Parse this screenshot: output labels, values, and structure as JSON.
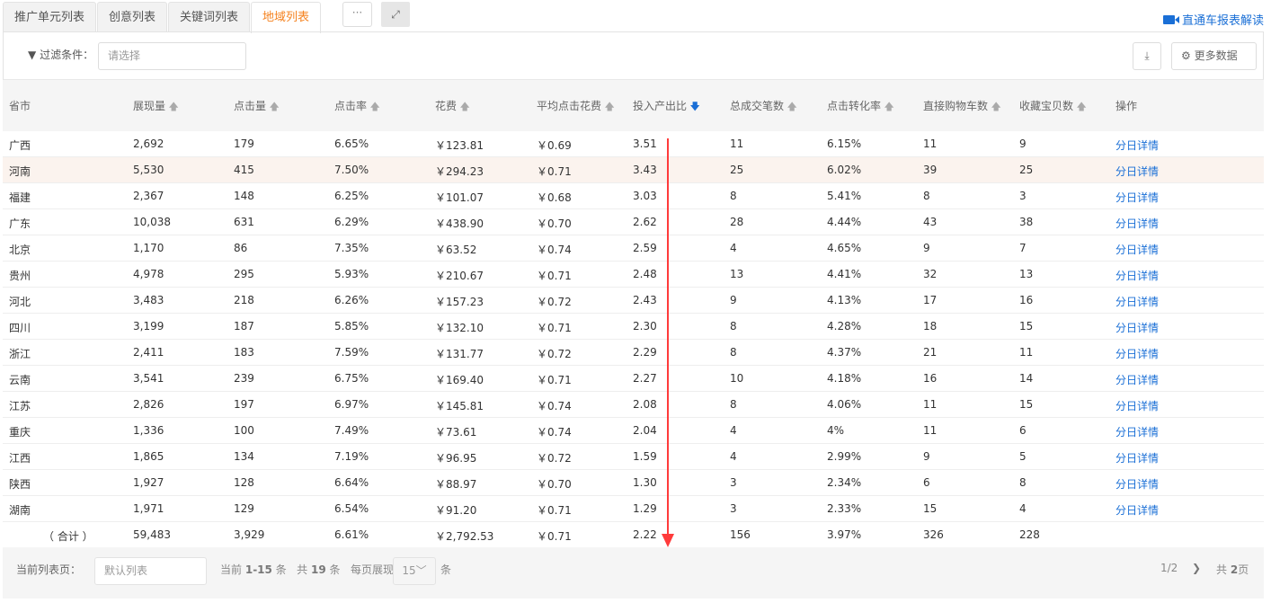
{
  "tabs": [
    {
      "label": "推广单元列表"
    },
    {
      "label": "创意列表"
    },
    {
      "label": "关键词列表"
    },
    {
      "label": "地域列表",
      "active": true
    }
  ],
  "more_label": "···",
  "expand_icon": "expand-icon",
  "guide_link": "直通车报表解读",
  "filter": {
    "label": "过滤条件：",
    "placeholder": "请选择"
  },
  "more_data": "更多数据",
  "columns": [
    {
      "label": "省市",
      "sort": ""
    },
    {
      "label": "展现量",
      "sort": "up"
    },
    {
      "label": "点击量",
      "sort": "up"
    },
    {
      "label": "点击率",
      "sort": "up"
    },
    {
      "label": "花费",
      "sort": "up"
    },
    {
      "label": "平均点击花费",
      "sort": "up"
    },
    {
      "label": "投入产出比",
      "sort": "down"
    },
    {
      "label": "总成交笔数",
      "sort": "up"
    },
    {
      "label": "点击转化率",
      "sort": "up"
    },
    {
      "label": "直接购物车数",
      "sort": "up"
    },
    {
      "label": "收藏宝贝数",
      "sort": "up"
    },
    {
      "label": "操作",
      "sort": ""
    }
  ],
  "rows": [
    [
      "广西",
      "2,692",
      "179",
      "6.65%",
      "￥123.81",
      "￥0.69",
      "3.51",
      "11",
      "6.15%",
      "11",
      "9",
      "分日详情"
    ],
    [
      "河南",
      "5,530",
      "415",
      "7.50%",
      "￥294.23",
      "￥0.71",
      "3.43",
      "25",
      "6.02%",
      "39",
      "25",
      "分日详情"
    ],
    [
      "福建",
      "2,367",
      "148",
      "6.25%",
      "￥101.07",
      "￥0.68",
      "3.03",
      "8",
      "5.41%",
      "8",
      "3",
      "分日详情"
    ],
    [
      "广东",
      "10,038",
      "631",
      "6.29%",
      "￥438.90",
      "￥0.70",
      "2.62",
      "28",
      "4.44%",
      "43",
      "38",
      "分日详情"
    ],
    [
      "北京",
      "1,170",
      "86",
      "7.35%",
      "￥63.52",
      "￥0.74",
      "2.59",
      "4",
      "4.65%",
      "9",
      "7",
      "分日详情"
    ],
    [
      "贵州",
      "4,978",
      "295",
      "5.93%",
      "￥210.67",
      "￥0.71",
      "2.48",
      "13",
      "4.41%",
      "32",
      "13",
      "分日详情"
    ],
    [
      "河北",
      "3,483",
      "218",
      "6.26%",
      "￥157.23",
      "￥0.72",
      "2.43",
      "9",
      "4.13%",
      "17",
      "16",
      "分日详情"
    ],
    [
      "四川",
      "3,199",
      "187",
      "5.85%",
      "￥132.10",
      "￥0.71",
      "2.30",
      "8",
      "4.28%",
      "18",
      "15",
      "分日详情"
    ],
    [
      "浙江",
      "2,411",
      "183",
      "7.59%",
      "￥131.77",
      "￥0.72",
      "2.29",
      "8",
      "4.37%",
      "21",
      "11",
      "分日详情"
    ],
    [
      "云南",
      "3,541",
      "239",
      "6.75%",
      "￥169.40",
      "￥0.71",
      "2.27",
      "10",
      "4.18%",
      "16",
      "14",
      "分日详情"
    ],
    [
      "江苏",
      "2,826",
      "197",
      "6.97%",
      "￥145.81",
      "￥0.74",
      "2.08",
      "8",
      "4.06%",
      "11",
      "15",
      "分日详情"
    ],
    [
      "重庆",
      "1,336",
      "100",
      "7.49%",
      "￥73.61",
      "￥0.74",
      "2.04",
      "4",
      "4%",
      "11",
      "6",
      "分日详情"
    ],
    [
      "江西",
      "1,865",
      "134",
      "7.19%",
      "￥96.95",
      "￥0.72",
      "1.59",
      "4",
      "2.99%",
      "9",
      "5",
      "分日详情"
    ],
    [
      "陕西",
      "1,927",
      "128",
      "6.64%",
      "￥88.97",
      "￥0.70",
      "1.30",
      "3",
      "2.34%",
      "6",
      "8",
      "分日详情"
    ],
    [
      "湖南",
      "1,971",
      "129",
      "6.54%",
      "￥91.20",
      "￥0.71",
      "1.29",
      "3",
      "2.33%",
      "15",
      "4",
      "分日详情"
    ]
  ],
  "total": [
    "（ 合计 ）",
    "59,483",
    "3,929",
    "6.61%",
    "￥2,792.53",
    "￥0.71",
    "2.22",
    "156",
    "3.97%",
    "326",
    "228",
    ""
  ],
  "footer": {
    "page_label": "当前列表页：",
    "page_placeholder": "默认列表",
    "current_prefix": "当前",
    "current_range": "1-15",
    "current_suffix": "条",
    "total_prefix": "共",
    "total_count": "19",
    "total_suffix": "条",
    "per_page_label": "每页展现",
    "per_page": "15",
    "per_page_suffix": "条",
    "page_indicator": "1/2",
    "pages_prefix": "共",
    "pages_count": "2",
    "pages_suffix": "页"
  },
  "colors": {
    "accent": "#f5821f",
    "link": "#1a6fd6",
    "annotation": "#ff3b3b",
    "highlight_row": "#fbf3ee"
  }
}
